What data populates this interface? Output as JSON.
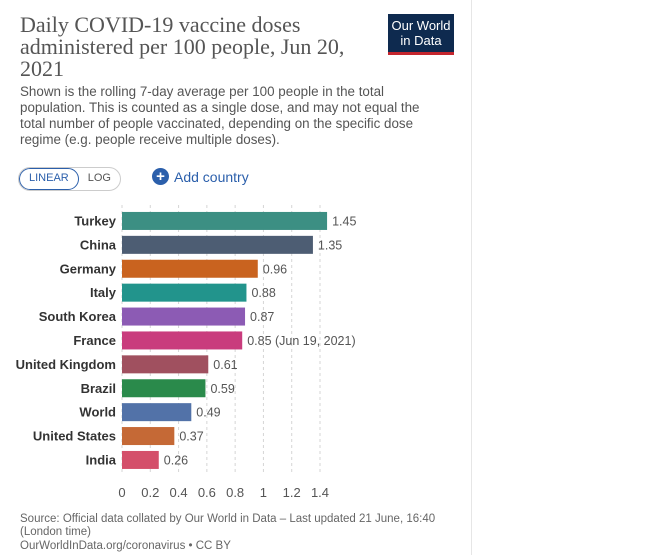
{
  "header": {
    "title": "Daily COVID-19 vaccine doses administered per 100 people, Jun 20, 2021",
    "subtitle": "Shown is the rolling 7-day average per 100 people in the total population. This is counted as a single dose, and may not equal the total number of people vaccinated, depending on the specific dose regime (e.g. people receive multiple doses).",
    "logo_line1": "Our World",
    "logo_line2": "in Data"
  },
  "controls": {
    "linear_label": "LINEAR",
    "log_label": "LOG",
    "add_country_label": "Add country"
  },
  "chart_data": {
    "type": "bar",
    "orientation": "horizontal",
    "title": "Daily COVID-19 vaccine doses administered per 100 people, Jun 20, 2021",
    "categories": [
      "Turkey",
      "China",
      "Germany",
      "Italy",
      "South Korea",
      "France",
      "United Kingdom",
      "Brazil",
      "World",
      "United States",
      "India"
    ],
    "values": [
      1.45,
      1.35,
      0.96,
      0.88,
      0.87,
      0.85,
      0.61,
      0.59,
      0.49,
      0.37,
      0.26
    ],
    "value_labels": [
      "1.45",
      "1.35",
      "0.96",
      "0.88",
      "0.87",
      "0.85 (Jun 19, 2021)",
      "0.61",
      "0.59",
      "0.49",
      "0.37",
      "0.26"
    ],
    "colors": [
      "#3c8f83",
      "#4d5d73",
      "#c9631f",
      "#22948c",
      "#8c5bb4",
      "#c93c7d",
      "#a0505f",
      "#2a8a4b",
      "#5272a8",
      "#c56936",
      "#d44f6a"
    ],
    "xticks": [
      "0",
      "0.2",
      "0.4",
      "0.6",
      "0.8",
      "1",
      "1.2",
      "1.4"
    ],
    "xlim": [
      0,
      1.4
    ],
    "xlabel": "",
    "ylabel": "",
    "grid": true,
    "scale": "linear"
  },
  "footer": {
    "source": "Source: Official data collated by Our World in Data – Last updated 21 June, 16:40 (London time)",
    "credit": "OurWorldInData.org/coronavirus • CC BY"
  }
}
